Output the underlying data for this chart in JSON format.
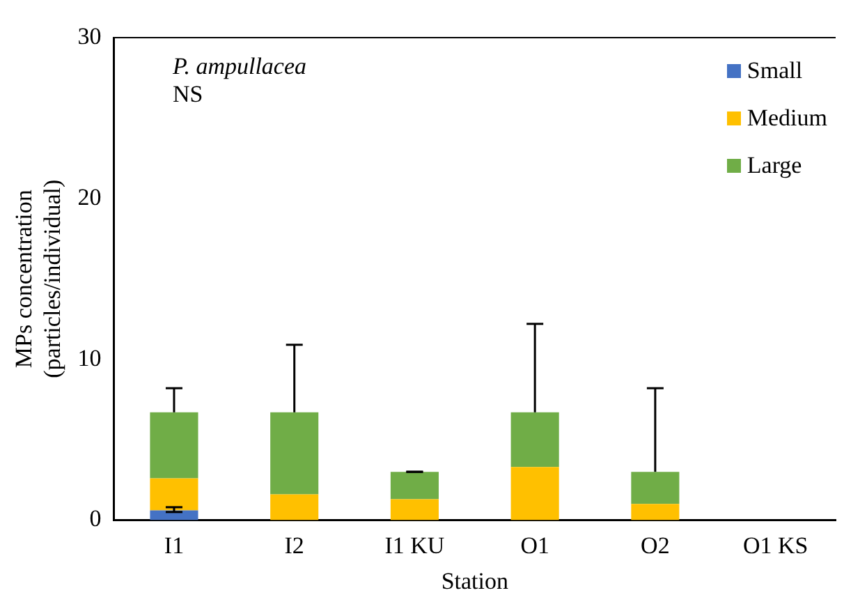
{
  "chart_data": {
    "type": "bar",
    "stacked": true,
    "xlabel": "Station",
    "ylabel": "MPs concentration\n(particles/individual)",
    "annotations": [
      "P. ampullacea",
      "NS"
    ],
    "categories": [
      "I1",
      "I2",
      "I1 KU",
      "O1",
      "O2",
      "O1 KS"
    ],
    "series": [
      {
        "name": "Small",
        "color": "#4472c4",
        "values": [
          0.6,
          0,
          0,
          0,
          0,
          0
        ],
        "errors": [
          [
            0.5,
            0.8
          ],
          null,
          null,
          null,
          null,
          null
        ]
      },
      {
        "name": "Medium",
        "color": "#ffc000",
        "values": [
          2.0,
          1.6,
          1.3,
          3.3,
          1.0,
          0
        ]
      },
      {
        "name": "Large",
        "color": "#70ad47",
        "values": [
          4.1,
          5.1,
          1.7,
          3.4,
          2.0,
          0
        ],
        "errors": [
          [
            6.7,
            8.2
          ],
          [
            6.7,
            10.9
          ],
          [
            3.0,
            3.0
          ],
          [
            6.7,
            12.2
          ],
          [
            3.0,
            8.2
          ],
          null
        ]
      }
    ],
    "ylim": [
      0,
      30
    ],
    "yticks": [
      0,
      10,
      20,
      30
    ],
    "grid": false,
    "legend": "top right"
  }
}
